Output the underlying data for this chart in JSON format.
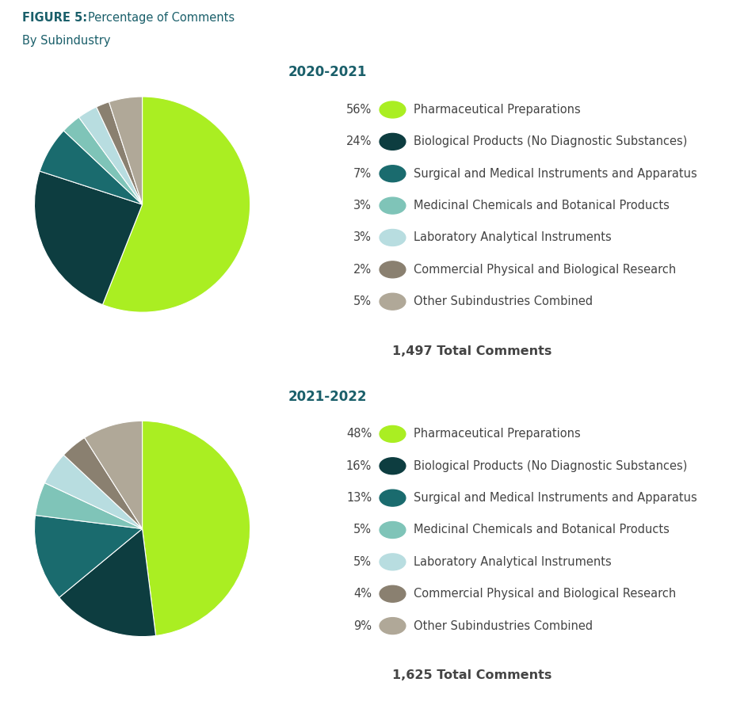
{
  "title_bold": "FIGURE 5:",
  "title_normal": "Percentage of Comments",
  "subtitle": "By Subindustry",
  "header_line_color": "#c8b89a",
  "title_color": "#1a5f6a",
  "background_color": "#ffffff",
  "chart1": {
    "year": "2020-2021",
    "total": "1,497 Total Comments",
    "values": [
      56,
      24,
      7,
      3,
      3,
      2,
      5
    ],
    "labels": [
      "Pharmaceutical Preparations",
      "Biological Products (No Diagnostic Substances)",
      "Surgical and Medical Instruments and Apparatus",
      "Medicinal Chemicals and Botanical Products",
      "Laboratory Analytical Instruments",
      "Commercial Physical and Biological Research",
      "Other Subindustries Combined"
    ],
    "percentages": [
      "56%",
      "24%",
      "7%",
      "3%",
      "3%",
      "2%",
      "5%"
    ],
    "colors": [
      "#aaee22",
      "#0d3d40",
      "#1a6b6e",
      "#7fc4b8",
      "#b8dde0",
      "#8a8070",
      "#b0a898"
    ]
  },
  "chart2": {
    "year": "2021-2022",
    "total": "1,625 Total Comments",
    "values": [
      48,
      16,
      13,
      5,
      5,
      4,
      9
    ],
    "labels": [
      "Pharmaceutical Preparations",
      "Biological Products (No Diagnostic Substances)",
      "Surgical and Medical Instruments and Apparatus",
      "Medicinal Chemicals and Botanical Products",
      "Laboratory Analytical Instruments",
      "Commercial Physical and Biological Research",
      "Other Subindustries Combined"
    ],
    "percentages": [
      "48%",
      "16%",
      "13%",
      "5%",
      "5%",
      "4%",
      "9%"
    ],
    "colors": [
      "#aaee22",
      "#0d3d40",
      "#1a6b6e",
      "#7fc4b8",
      "#b8dde0",
      "#8a8070",
      "#b0a898"
    ]
  }
}
